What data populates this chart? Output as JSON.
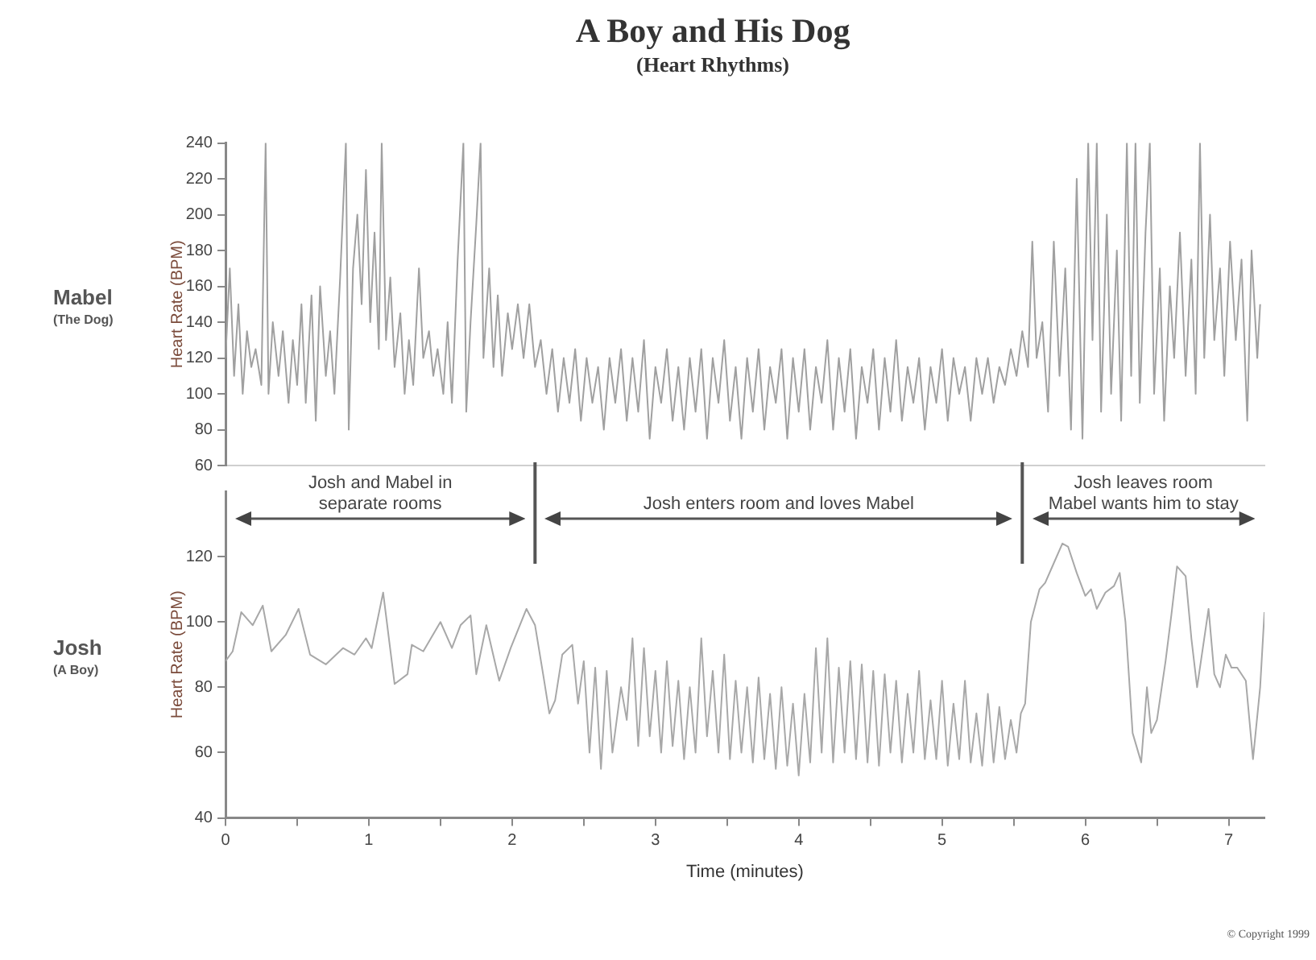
{
  "chart_data": [
    {
      "type": "line",
      "title": "A Boy and His Dog",
      "subtitle": "(Heart Rhythms)",
      "ylabel": "Heart Rate (BPM)",
      "annotations": [
        "Mabel",
        "(The Dog)"
      ],
      "tick_labels": "y",
      "xlim": [
        0,
        7.25
      ],
      "xticks": [
        0,
        1,
        2,
        3,
        4,
        5,
        6,
        7
      ],
      "ylim": [
        60,
        240
      ],
      "yticks": [
        60,
        80,
        100,
        120,
        140,
        160,
        180,
        200,
        220,
        240
      ],
      "series": [
        {
          "color": "#a0a0a0",
          "x": [
            0,
            0.03,
            0.06,
            0.09,
            0.12,
            0.15,
            0.18,
            0.21,
            0.25,
            0.28,
            0.3,
            0.33,
            0.37,
            0.4,
            0.44,
            0.47,
            0.5,
            0.53,
            0.56,
            0.6,
            0.63,
            0.66,
            0.7,
            0.73,
            0.76,
            0.8,
            0.84,
            0.86,
            0.89,
            0.92,
            0.95,
            0.98,
            1.01,
            1.04,
            1.07,
            1.09,
            1.12,
            1.15,
            1.18,
            1.22,
            1.25,
            1.28,
            1.31,
            1.35,
            1.38,
            1.42,
            1.45,
            1.48,
            1.52,
            1.55,
            1.58,
            1.62,
            1.66,
            1.68,
            1.71,
            1.75,
            1.78,
            1.8,
            1.84,
            1.87,
            1.9,
            1.93,
            1.97,
            2,
            2.04,
            2.08,
            2.12,
            2.16,
            2.2,
            2.24,
            2.28,
            2.32,
            2.36,
            2.4,
            2.44,
            2.48,
            2.52,
            2.56,
            2.6,
            2.64,
            2.68,
            2.72,
            2.76,
            2.8,
            2.84,
            2.88,
            2.92,
            2.96,
            3,
            3.04,
            3.08,
            3.12,
            3.16,
            3.2,
            3.24,
            3.28,
            3.32,
            3.36,
            3.4,
            3.44,
            3.48,
            3.52,
            3.56,
            3.6,
            3.64,
            3.68,
            3.72,
            3.76,
            3.8,
            3.84,
            3.88,
            3.92,
            3.96,
            4,
            4.04,
            4.08,
            4.12,
            4.16,
            4.2,
            4.24,
            4.28,
            4.32,
            4.36,
            4.4,
            4.44,
            4.48,
            4.52,
            4.56,
            4.6,
            4.64,
            4.68,
            4.72,
            4.76,
            4.8,
            4.84,
            4.88,
            4.92,
            4.96,
            5,
            5.04,
            5.08,
            5.12,
            5.16,
            5.2,
            5.24,
            5.28,
            5.32,
            5.36,
            5.4,
            5.44,
            5.48,
            5.52,
            5.56,
            5.6,
            5.63,
            5.66,
            5.7,
            5.74,
            5.78,
            5.82,
            5.86,
            5.9,
            5.94,
            5.98,
            6.02,
            6.05,
            6.08,
            6.11,
            6.15,
            6.18,
            6.22,
            6.25,
            6.29,
            6.32,
            6.35,
            6.38,
            6.42,
            6.45,
            6.48,
            6.52,
            6.55,
            6.59,
            6.62,
            6.66,
            6.7,
            6.74,
            6.77,
            6.8,
            6.83,
            6.87,
            6.9,
            6.94,
            6.97,
            7.01,
            7.05,
            7.09,
            7.13,
            7.16,
            7.2,
            7.22
          ],
          "values": [
            120,
            170,
            110,
            150,
            100,
            135,
            115,
            125,
            105,
            240,
            100,
            140,
            110,
            135,
            95,
            130,
            105,
            150,
            95,
            155,
            85,
            160,
            110,
            135,
            100,
            165,
            240,
            80,
            170,
            200,
            150,
            225,
            140,
            190,
            125,
            240,
            130,
            165,
            115,
            145,
            100,
            130,
            105,
            170,
            120,
            135,
            110,
            125,
            100,
            140,
            95,
            175,
            240,
            90,
            140,
            195,
            240,
            120,
            170,
            115,
            155,
            110,
            145,
            125,
            150,
            120,
            150,
            115,
            130,
            100,
            125,
            90,
            120,
            95,
            125,
            85,
            120,
            95,
            115,
            80,
            120,
            95,
            125,
            85,
            120,
            90,
            130,
            75,
            115,
            95,
            125,
            85,
            115,
            80,
            120,
            90,
            125,
            75,
            120,
            95,
            130,
            85,
            115,
            75,
            120,
            90,
            125,
            80,
            115,
            95,
            125,
            75,
            120,
            90,
            125,
            80,
            115,
            95,
            130,
            80,
            120,
            90,
            125,
            75,
            115,
            95,
            125,
            80,
            120,
            90,
            130,
            85,
            115,
            95,
            120,
            80,
            115,
            95,
            125,
            85,
            120,
            100,
            115,
            85,
            120,
            100,
            120,
            95,
            115,
            105,
            125,
            110,
            135,
            115,
            185,
            120,
            140,
            90,
            185,
            110,
            170,
            80,
            220,
            75,
            240,
            130,
            240,
            90,
            200,
            100,
            180,
            85,
            240,
            110,
            240,
            95,
            190,
            240,
            100,
            170,
            85,
            160,
            120,
            190,
            110,
            175,
            100,
            240,
            120,
            200,
            130,
            170,
            110,
            185,
            130,
            175,
            85,
            180,
            120,
            150
          ]
        }
      ]
    },
    {
      "type": "line",
      "xlabel": "Time (minutes)",
      "ylabel": "Heart Rate (BPM)",
      "annotations": [
        "Josh",
        "(A Boy)",
        "Josh and Mabel in\nseparate rooms",
        "Josh enters room and loves Mabel",
        "Josh leaves room\nMabel wants him to stay",
        "© Copyright 1999"
      ],
      "ref_lines": [
        {
          "axis": "x",
          "value": 2.16,
          "color": "#555555"
        },
        {
          "axis": "x",
          "value": 5.56,
          "color": "#555555"
        }
      ],
      "xlim": [
        0,
        7.25
      ],
      "xticks": [
        0,
        {
          "value": 0.5,
          "label": null
        },
        1,
        {
          "value": 1.5,
          "label": null
        },
        2,
        {
          "value": 2.5,
          "label": null
        },
        3,
        {
          "value": 3.5,
          "label": null
        },
        4,
        {
          "value": 4.5,
          "label": null
        },
        5,
        {
          "value": 5.5,
          "label": null
        },
        6,
        {
          "value": 6.5,
          "label": null
        },
        7
      ],
      "ylim": [
        40,
        140
      ],
      "yticks": [
        40,
        60,
        80,
        100,
        120
      ],
      "series": [
        {
          "color": "#a8a8a8",
          "x": [
            0,
            0.05,
            0.11,
            0.19,
            0.26,
            0.32,
            0.42,
            0.51,
            0.59,
            0.7,
            0.82,
            0.9,
            0.98,
            1.02,
            1.1,
            1.18,
            1.27,
            1.3,
            1.38,
            1.5,
            1.58,
            1.64,
            1.71,
            1.75,
            1.82,
            1.91,
            1.99,
            2.1,
            2.16,
            2.22,
            2.26,
            2.3,
            2.35,
            2.42,
            2.46,
            2.5,
            2.54,
            2.58,
            2.62,
            2.66,
            2.7,
            2.76,
            2.8,
            2.84,
            2.88,
            2.92,
            2.96,
            3,
            3.04,
            3.08,
            3.12,
            3.16,
            3.2,
            3.24,
            3.28,
            3.32,
            3.36,
            3.4,
            3.44,
            3.48,
            3.52,
            3.56,
            3.6,
            3.64,
            3.68,
            3.72,
            3.76,
            3.8,
            3.84,
            3.88,
            3.92,
            3.96,
            4,
            4.04,
            4.08,
            4.12,
            4.16,
            4.2,
            4.24,
            4.28,
            4.32,
            4.36,
            4.4,
            4.44,
            4.48,
            4.52,
            4.56,
            4.6,
            4.64,
            4.68,
            4.72,
            4.76,
            4.8,
            4.84,
            4.88,
            4.92,
            4.96,
            5,
            5.04,
            5.08,
            5.12,
            5.16,
            5.2,
            5.24,
            5.28,
            5.32,
            5.36,
            5.4,
            5.44,
            5.48,
            5.52,
            5.55,
            5.58,
            5.62,
            5.68,
            5.72,
            5.78,
            5.84,
            5.88,
            5.94,
            6,
            6.04,
            6.08,
            6.14,
            6.2,
            6.24,
            6.28,
            6.33,
            6.39,
            6.43,
            6.46,
            6.5,
            6.56,
            6.6,
            6.64,
            6.7,
            6.74,
            6.78,
            6.82,
            6.86,
            6.9,
            6.94,
            6.98,
            7.02,
            7.06,
            7.12,
            7.17,
            7.22,
            7.25
          ],
          "values": [
            88,
            91,
            103,
            99,
            105,
            91,
            96,
            104,
            90,
            87,
            92,
            90,
            95,
            92,
            109,
            81,
            84,
            93,
            91,
            100,
            92,
            99,
            102,
            84,
            99,
            82,
            92,
            104,
            99,
            83,
            72,
            76,
            90,
            93,
            75,
            88,
            60,
            86,
            55,
            85,
            60,
            80,
            70,
            95,
            62,
            92,
            65,
            85,
            60,
            88,
            62,
            82,
            58,
            80,
            60,
            95,
            65,
            85,
            60,
            90,
            58,
            82,
            60,
            80,
            57,
            83,
            58,
            78,
            55,
            80,
            56,
            75,
            53,
            78,
            57,
            92,
            60,
            95,
            57,
            86,
            60,
            88,
            58,
            87,
            57,
            85,
            56,
            84,
            60,
            82,
            57,
            78,
            60,
            85,
            58,
            76,
            58,
            82,
            56,
            75,
            58,
            82,
            57,
            72,
            56,
            78,
            57,
            74,
            58,
            70,
            60,
            72,
            75,
            100,
            110,
            112,
            118,
            124,
            123,
            115,
            108,
            110,
            104,
            109,
            111,
            115,
            100,
            66,
            57,
            80,
            66,
            70,
            88,
            102,
            117,
            114,
            95,
            80,
            92,
            104,
            84,
            80,
            90,
            86,
            86,
            82,
            58,
            80,
            103
          ]
        }
      ]
    }
  ]
}
